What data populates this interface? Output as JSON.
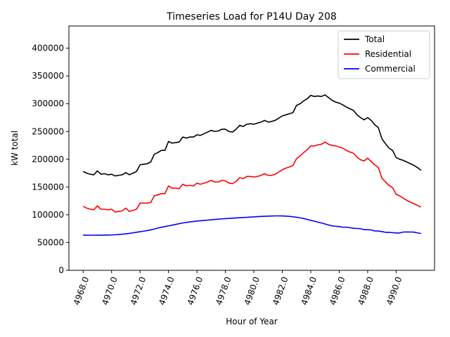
{
  "chart_data": {
    "type": "line",
    "title": "Timeseries Load for P14U   Day 208",
    "xlabel": "Hour of Year",
    "ylabel": "kW total",
    "xlim": [
      4967.0,
      4992.7
    ],
    "ylim": [
      0,
      440000
    ],
    "xticks": [
      4968,
      4970,
      4972,
      4974,
      4976,
      4978,
      4980,
      4982,
      4984,
      4986,
      4988,
      4990
    ],
    "xtick_labels": [
      "4968.0",
      "4970.0",
      "4972.0",
      "4974.0",
      "4976.0",
      "4978.0",
      "4980.0",
      "4982.0",
      "4984.0",
      "4986.0",
      "4988.0",
      "4990.0"
    ],
    "yticks": [
      0,
      50000,
      100000,
      150000,
      200000,
      250000,
      300000,
      350000,
      400000
    ],
    "ytick_labels": [
      "0",
      "50000",
      "100000",
      "150000",
      "200000",
      "250000",
      "300000",
      "350000",
      "400000"
    ],
    "legend_position": "top-right",
    "x": [
      4968.0,
      4968.25,
      4968.5,
      4968.75,
      4969.0,
      4969.25,
      4969.5,
      4969.75,
      4970.0,
      4970.25,
      4970.5,
      4970.75,
      4971.0,
      4971.25,
      4971.5,
      4971.75,
      4972.0,
      4972.25,
      4972.5,
      4972.75,
      4973.0,
      4973.25,
      4973.5,
      4973.75,
      4974.0,
      4974.25,
      4974.5,
      4974.75,
      4975.0,
      4975.25,
      4975.5,
      4975.75,
      4976.0,
      4976.25,
      4976.5,
      4976.75,
      4977.0,
      4977.25,
      4977.5,
      4977.75,
      4978.0,
      4978.25,
      4978.5,
      4978.75,
      4979.0,
      4979.25,
      4979.5,
      4979.75,
      4980.0,
      4980.25,
      4980.5,
      4980.75,
      4981.0,
      4981.25,
      4981.5,
      4981.75,
      4982.0,
      4982.25,
      4982.5,
      4982.75,
      4983.0,
      4983.25,
      4983.5,
      4983.75,
      4984.0,
      4984.25,
      4984.5,
      4984.75,
      4985.0,
      4985.25,
      4985.5,
      4985.75,
      4986.0,
      4986.25,
      4986.5,
      4986.75,
      4987.0,
      4987.25,
      4987.5,
      4987.75,
      4988.0,
      4988.25,
      4988.5,
      4988.75,
      4989.0,
      4989.25,
      4989.5,
      4989.75,
      4990.0,
      4990.25,
      4990.5,
      4990.75,
      4991.0,
      4991.25,
      4991.5,
      4991.75
    ],
    "series": [
      {
        "name": "Total",
        "color": "#000000",
        "values": [
          178000,
          175000,
          173000,
          172000,
          179000,
          173000,
          174000,
          172000,
          173000,
          170000,
          171000,
          172000,
          176000,
          172000,
          175000,
          178000,
          190000,
          191000,
          192000,
          195000,
          209000,
          212000,
          216000,
          216000,
          232000,
          229000,
          230000,
          231000,
          240000,
          238000,
          240000,
          240000,
          244000,
          243000,
          246000,
          249000,
          252000,
          250000,
          251000,
          254000,
          254000,
          250000,
          249000,
          254000,
          261000,
          259000,
          263000,
          264000,
          263000,
          265000,
          267000,
          270000,
          267000,
          268000,
          270000,
          274000,
          278000,
          280000,
          282000,
          284000,
          297000,
          300000,
          305000,
          309000,
          315000,
          313000,
          314000,
          313000,
          316000,
          311000,
          306000,
          303000,
          301000,
          298000,
          294000,
          291000,
          288000,
          280000,
          275000,
          271000,
          275000,
          270000,
          262000,
          257000,
          237000,
          228000,
          220000,
          216000,
          203000,
          200000,
          198000,
          195000,
          192000,
          189000,
          185000,
          180000
        ]
      },
      {
        "name": "Residential",
        "color": "#ff0000",
        "values": [
          115000,
          112000,
          110000,
          109000,
          116000,
          110000,
          110000,
          109000,
          110000,
          105000,
          106000,
          107000,
          112000,
          106000,
          108000,
          110000,
          121000,
          121000,
          121000,
          122000,
          134000,
          136000,
          138000,
          138000,
          152000,
          148000,
          148000,
          147000,
          155000,
          152000,
          153000,
          152000,
          157000,
          155000,
          157000,
          159000,
          162000,
          159000,
          159000,
          162000,
          161000,
          157000,
          156000,
          160000,
          167000,
          165000,
          169000,
          169000,
          168000,
          169000,
          171000,
          174000,
          171000,
          171000,
          173000,
          177000,
          181000,
          184000,
          186000,
          189000,
          201000,
          206000,
          212000,
          217000,
          224000,
          224000,
          226000,
          227000,
          231000,
          227000,
          225000,
          224000,
          222000,
          220000,
          216000,
          213000,
          211000,
          204000,
          199000,
          197000,
          202000,
          196000,
          190000,
          185000,
          166000,
          159000,
          153000,
          149000,
          137000,
          134000,
          130000,
          126000,
          123000,
          120000,
          117000,
          114000
        ]
      },
      {
        "name": "Commercial",
        "color": "#0000ff",
        "values": [
          63500,
          63300,
          63200,
          63200,
          63300,
          63300,
          63400,
          63500,
          63700,
          64000,
          64400,
          65000,
          65700,
          66500,
          67500,
          68500,
          69500,
          70500,
          71500,
          72800,
          74300,
          76000,
          77500,
          78800,
          80000,
          81300,
          82600,
          84000,
          85200,
          86200,
          87200,
          88000,
          88600,
          89200,
          89800,
          90400,
          91000,
          91600,
          92100,
          92600,
          93000,
          93500,
          93900,
          94300,
          94700,
          95000,
          95400,
          95800,
          96200,
          96600,
          97000,
          97300,
          97600,
          97800,
          98000,
          98000,
          97900,
          97600,
          97100,
          96400,
          95500,
          94500,
          93200,
          91700,
          90000,
          88500,
          86800,
          85200,
          83400,
          81600,
          80000,
          79200,
          78800,
          77600,
          77700,
          76800,
          75600,
          75400,
          74900,
          73200,
          73100,
          72700,
          70900,
          70700,
          69800,
          68400,
          68300,
          67800,
          67300,
          67200,
          68900,
          69000,
          68900,
          68800,
          67300,
          66400
        ]
      }
    ]
  }
}
